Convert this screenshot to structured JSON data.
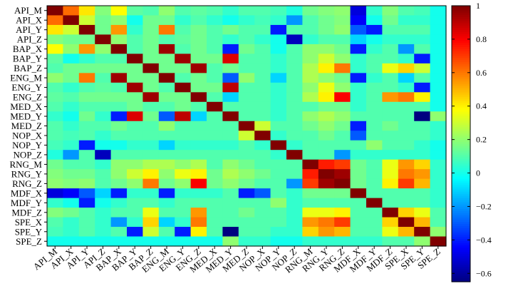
{
  "chart_data": {
    "type": "heatmap",
    "title": "",
    "xlabel": "",
    "ylabel": "",
    "labels": [
      "API_M",
      "API_X",
      "API_Y",
      "API_Z",
      "BAP_X",
      "BAP_Y",
      "BAP_Z",
      "ENG_M",
      "ENG_Y",
      "ENG_Z",
      "MED_X",
      "MED_Y",
      "MED_Z",
      "NOP_X",
      "NOP_Y",
      "NOP_Z",
      "RNG_M",
      "RNG_Y",
      "RNG_Z",
      "MDF_X",
      "MDF_Y",
      "MDF_Z",
      "SPE_X",
      "SPE_Y",
      "SPE_Z"
    ],
    "colorbar": {
      "min": -0.65,
      "max": 1.0,
      "ticks": [
        -0.6,
        -0.4,
        -0.2,
        0,
        0.2,
        0.4,
        0.6,
        0.8,
        1
      ],
      "tick_labels": [
        "−0.6",
        "−0.4",
        "−0.2",
        "0",
        "0.2",
        "0.4",
        "0.6",
        "0.8",
        "1"
      ],
      "colormap": "jet"
    },
    "matrix": [
      [
        1.0,
        0.62,
        0.42,
        0.18,
        0.38,
        0.12,
        0.1,
        0.2,
        0.1,
        0.12,
        0.1,
        0.05,
        0.1,
        0.1,
        0.08,
        0.02,
        0.15,
        0.18,
        0.2,
        -0.5,
        0.05,
        0.18,
        0.1,
        0.08,
        0.0
      ],
      [
        0.62,
        1.0,
        0.3,
        0.15,
        0.2,
        0.0,
        0.15,
        0.15,
        0.05,
        0.1,
        0.05,
        0.0,
        0.05,
        0.08,
        0.05,
        -0.2,
        0.1,
        0.15,
        0.18,
        -0.45,
        0.0,
        0.15,
        0.05,
        0.05,
        0.0
      ],
      [
        0.42,
        0.3,
        1.0,
        0.15,
        0.55,
        0.05,
        0.15,
        0.6,
        0.1,
        0.15,
        0.1,
        0.15,
        0.1,
        0.1,
        -0.4,
        0.1,
        0.1,
        0.15,
        0.2,
        -0.3,
        -0.4,
        0.1,
        0.1,
        0.1,
        0.0
      ],
      [
        0.18,
        0.15,
        0.15,
        1.0,
        0.2,
        0.1,
        0.15,
        0.1,
        0.12,
        0.15,
        0.1,
        0.05,
        0.1,
        0.05,
        0.0,
        -0.55,
        0.05,
        0.1,
        0.1,
        -0.1,
        0.0,
        0.05,
        0.05,
        0.05,
        0.0
      ],
      [
        0.38,
        0.2,
        0.55,
        0.2,
        1.0,
        0.1,
        0.15,
        0.95,
        0.1,
        0.15,
        0.1,
        -0.4,
        0.15,
        0.1,
        0.0,
        0.1,
        0.2,
        0.2,
        0.15,
        -0.4,
        0.05,
        0.1,
        -0.2,
        0.1,
        0.0
      ],
      [
        0.12,
        0.0,
        0.05,
        0.1,
        0.1,
        1.0,
        0.15,
        0.15,
        0.95,
        0.15,
        0.15,
        0.85,
        0.1,
        0.1,
        0.05,
        0.1,
        0.2,
        0.3,
        0.2,
        0.05,
        0.1,
        0.1,
        0.05,
        -0.4,
        0.0
      ],
      [
        0.1,
        0.15,
        0.15,
        0.15,
        0.15,
        0.15,
        1.0,
        0.15,
        0.15,
        0.95,
        0.1,
        0.15,
        0.1,
        0.1,
        0.05,
        0.1,
        0.25,
        0.4,
        0.6,
        0.05,
        0.1,
        0.35,
        0.45,
        0.3,
        0.0
      ],
      [
        0.2,
        0.15,
        0.6,
        0.1,
        0.95,
        0.15,
        0.15,
        1.0,
        0.1,
        0.15,
        0.1,
        -0.3,
        0.2,
        0.1,
        -0.1,
        0.1,
        0.25,
        0.2,
        0.15,
        -0.4,
        0.05,
        0.1,
        -0.1,
        0.1,
        0.0
      ],
      [
        0.1,
        0.05,
        0.1,
        0.12,
        0.1,
        0.95,
        0.15,
        0.1,
        1.0,
        0.15,
        0.15,
        0.9,
        0.1,
        0.1,
        0.05,
        0.1,
        0.2,
        0.35,
        0.2,
        0.05,
        0.1,
        0.1,
        0.05,
        -0.4,
        0.0
      ],
      [
        0.12,
        0.1,
        0.15,
        0.15,
        0.15,
        0.15,
        0.95,
        0.15,
        0.15,
        1.0,
        0.1,
        -0.1,
        0.1,
        0.1,
        0.05,
        0.1,
        0.25,
        0.4,
        0.8,
        0.05,
        0.1,
        0.55,
        0.6,
        0.4,
        0.0
      ],
      [
        0.1,
        0.05,
        0.1,
        0.1,
        0.1,
        0.15,
        0.1,
        0.1,
        0.15,
        0.1,
        1.0,
        0.1,
        0.1,
        0.1,
        0.05,
        0.1,
        0.1,
        0.15,
        0.15,
        0.05,
        0.1,
        0.1,
        0.1,
        0.1,
        0.0
      ],
      [
        0.05,
        0.0,
        0.15,
        0.05,
        -0.4,
        0.85,
        0.15,
        -0.3,
        0.9,
        -0.1,
        0.1,
        1.0,
        0.1,
        0.1,
        0.05,
        0.1,
        0.2,
        0.25,
        0.2,
        0.1,
        0.1,
        0.1,
        0.1,
        -0.65,
        0.2
      ],
      [
        0.1,
        0.05,
        0.1,
        0.1,
        0.15,
        0.1,
        0.1,
        0.2,
        0.1,
        0.1,
        0.1,
        0.1,
        1.0,
        0.3,
        0.1,
        0.1,
        0.15,
        0.2,
        0.15,
        -0.4,
        0.1,
        0.15,
        0.1,
        0.1,
        0.05
      ],
      [
        0.1,
        0.08,
        0.1,
        0.05,
        0.1,
        0.1,
        0.1,
        0.1,
        0.1,
        0.1,
        0.1,
        0.1,
        0.3,
        1.0,
        0.05,
        0.1,
        0.1,
        0.15,
        0.1,
        -0.3,
        0.1,
        0.1,
        0.1,
        0.1,
        0.05
      ],
      [
        0.08,
        0.05,
        -0.4,
        0.0,
        0.0,
        0.05,
        0.05,
        -0.1,
        0.05,
        0.05,
        0.05,
        0.05,
        0.1,
        0.05,
        1.0,
        0.05,
        0.1,
        0.1,
        0.1,
        0.1,
        0.2,
        0.1,
        0.1,
        0.05,
        0.0
      ],
      [
        0.02,
        -0.2,
        0.1,
        -0.55,
        0.1,
        0.1,
        0.1,
        0.1,
        0.1,
        0.1,
        0.1,
        0.1,
        0.1,
        0.1,
        0.05,
        1.0,
        0.1,
        0.1,
        -0.2,
        0.05,
        0.05,
        0.05,
        0.05,
        0.05,
        0.0
      ],
      [
        0.15,
        0.1,
        0.1,
        0.05,
        0.2,
        0.2,
        0.25,
        0.25,
        0.2,
        0.25,
        0.1,
        0.2,
        0.15,
        0.1,
        0.1,
        0.1,
        1.0,
        0.75,
        0.7,
        0.15,
        0.1,
        0.35,
        0.55,
        0.45,
        0.05
      ],
      [
        0.18,
        0.15,
        0.15,
        0.1,
        0.2,
        0.3,
        0.4,
        0.2,
        0.35,
        0.4,
        0.15,
        0.25,
        0.2,
        0.15,
        0.1,
        0.1,
        0.75,
        1.0,
        0.95,
        0.15,
        0.1,
        0.35,
        0.6,
        0.55,
        0.05
      ],
      [
        0.2,
        0.18,
        0.2,
        0.1,
        0.15,
        0.2,
        0.6,
        0.15,
        0.2,
        0.8,
        0.15,
        0.2,
        0.15,
        0.1,
        0.1,
        -0.2,
        0.7,
        0.95,
        1.0,
        0.15,
        0.1,
        0.4,
        0.7,
        0.5,
        0.05
      ],
      [
        -0.5,
        -0.45,
        -0.3,
        -0.1,
        -0.4,
        0.05,
        0.05,
        -0.4,
        0.05,
        0.05,
        0.05,
        0.1,
        -0.4,
        -0.3,
        0.1,
        0.05,
        0.15,
        0.15,
        0.15,
        1.0,
        0.1,
        0.1,
        0.1,
        0.1,
        0.05
      ],
      [
        0.05,
        0.0,
        -0.4,
        0.0,
        0.05,
        0.1,
        0.1,
        0.05,
        0.1,
        0.1,
        0.1,
        0.1,
        0.1,
        0.1,
        0.2,
        0.05,
        0.1,
        0.1,
        0.1,
        0.1,
        1.0,
        0.1,
        0.1,
        0.1,
        0.05
      ],
      [
        0.18,
        0.15,
        0.1,
        0.05,
        0.1,
        0.1,
        0.35,
        0.1,
        0.1,
        0.55,
        0.1,
        0.1,
        0.15,
        0.1,
        0.1,
        0.05,
        0.35,
        0.35,
        0.4,
        0.1,
        0.1,
        1.0,
        0.45,
        0.35,
        0.1
      ],
      [
        0.1,
        0.05,
        0.1,
        0.05,
        -0.2,
        0.05,
        0.45,
        -0.1,
        0.05,
        0.6,
        0.1,
        0.1,
        0.1,
        0.1,
        0.1,
        0.05,
        0.55,
        0.6,
        0.7,
        0.1,
        0.1,
        0.45,
        1.0,
        0.5,
        0.1
      ],
      [
        0.08,
        0.05,
        0.1,
        0.05,
        0.1,
        -0.4,
        0.3,
        0.1,
        -0.4,
        0.4,
        0.1,
        -0.65,
        0.1,
        0.1,
        0.05,
        0.05,
        0.45,
        0.55,
        0.5,
        0.1,
        0.1,
        0.35,
        0.5,
        1.0,
        0.2
      ],
      [
        0.0,
        0.0,
        0.0,
        0.0,
        0.0,
        0.0,
        0.0,
        0.0,
        0.0,
        0.0,
        0.0,
        0.2,
        0.05,
        0.05,
        0.0,
        0.0,
        0.05,
        0.05,
        0.05,
        0.05,
        0.05,
        0.1,
        0.1,
        0.2,
        1.0
      ]
    ]
  }
}
